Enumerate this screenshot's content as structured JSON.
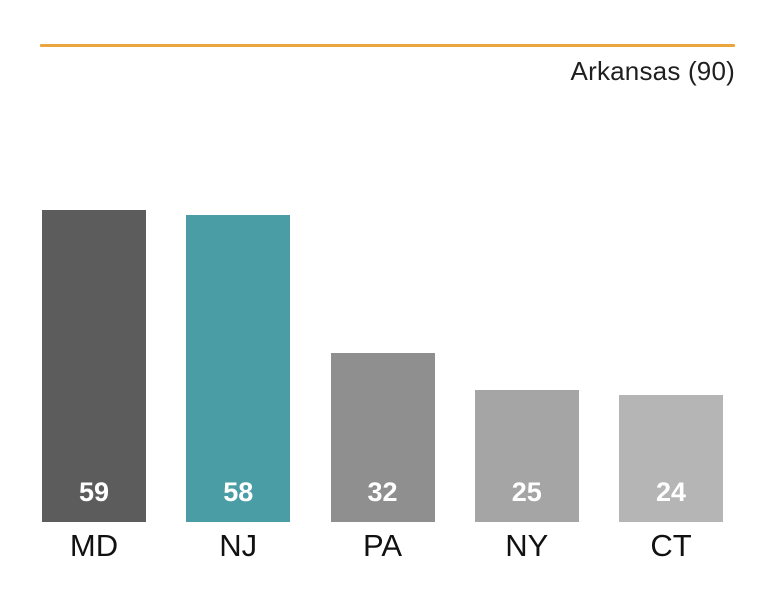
{
  "header": {
    "annotation": "Arkansas (90)"
  },
  "colors": {
    "rule": "#EAA63C",
    "text": "#1f1f1f",
    "value_label": "#ffffff"
  },
  "chart_data": {
    "type": "bar",
    "title": "",
    "annotation": "Arkansas (90)",
    "categories": [
      "MD",
      "NJ",
      "PA",
      "NY",
      "CT"
    ],
    "values": [
      59,
      58,
      32,
      25,
      24
    ],
    "bar_colors": [
      "#5c5c5c",
      "#4a9da5",
      "#8f8f8f",
      "#a5a5a5",
      "#b5b5b5"
    ],
    "highlight_category": "NJ",
    "ylim": [
      0,
      59
    ],
    "grid": false,
    "legend": false,
    "value_label_position": "inside-bottom"
  }
}
